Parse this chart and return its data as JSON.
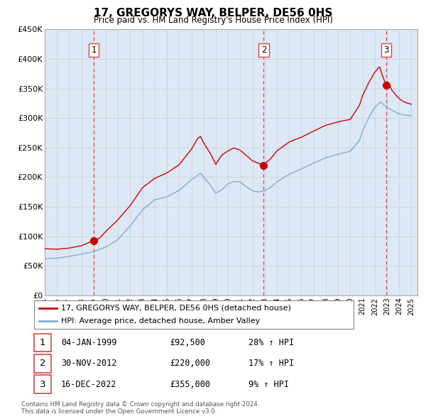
{
  "title": "17, GREGORYS WAY, BELPER, DE56 0HS",
  "subtitle": "Price paid vs. HM Land Registry's House Price Index (HPI)",
  "legend_line1": "17, GREGORYS WAY, BELPER, DE56 0HS (detached house)",
  "legend_line2": "HPI: Average price, detached house, Amber Valley",
  "transactions": [
    {
      "num": 1,
      "date": "04-JAN-1999",
      "price": 92500,
      "pct": "28%",
      "dir": "↑"
    },
    {
      "num": 2,
      "date": "30-NOV-2012",
      "price": 220000,
      "pct": "17%",
      "dir": "↑"
    },
    {
      "num": 3,
      "date": "16-DEC-2022",
      "price": 355000,
      "pct": "9%",
      "dir": "↑"
    }
  ],
  "transaction_dates_decimal": [
    1999.01,
    2012.92,
    2022.96
  ],
  "vline_color": "#dd4444",
  "vline_shade_color": "#dce8f5",
  "property_color": "#cc0000",
  "hpi_color": "#7bafd4",
  "footer": "Contains HM Land Registry data © Crown copyright and database right 2024.\nThis data is licensed under the Open Government Licence v3.0.",
  "ylim": [
    0,
    450000
  ],
  "yticks": [
    0,
    50000,
    100000,
    150000,
    200000,
    250000,
    300000,
    350000,
    400000,
    450000
  ],
  "xlim_start": 1995.0,
  "xlim_end": 2025.5
}
